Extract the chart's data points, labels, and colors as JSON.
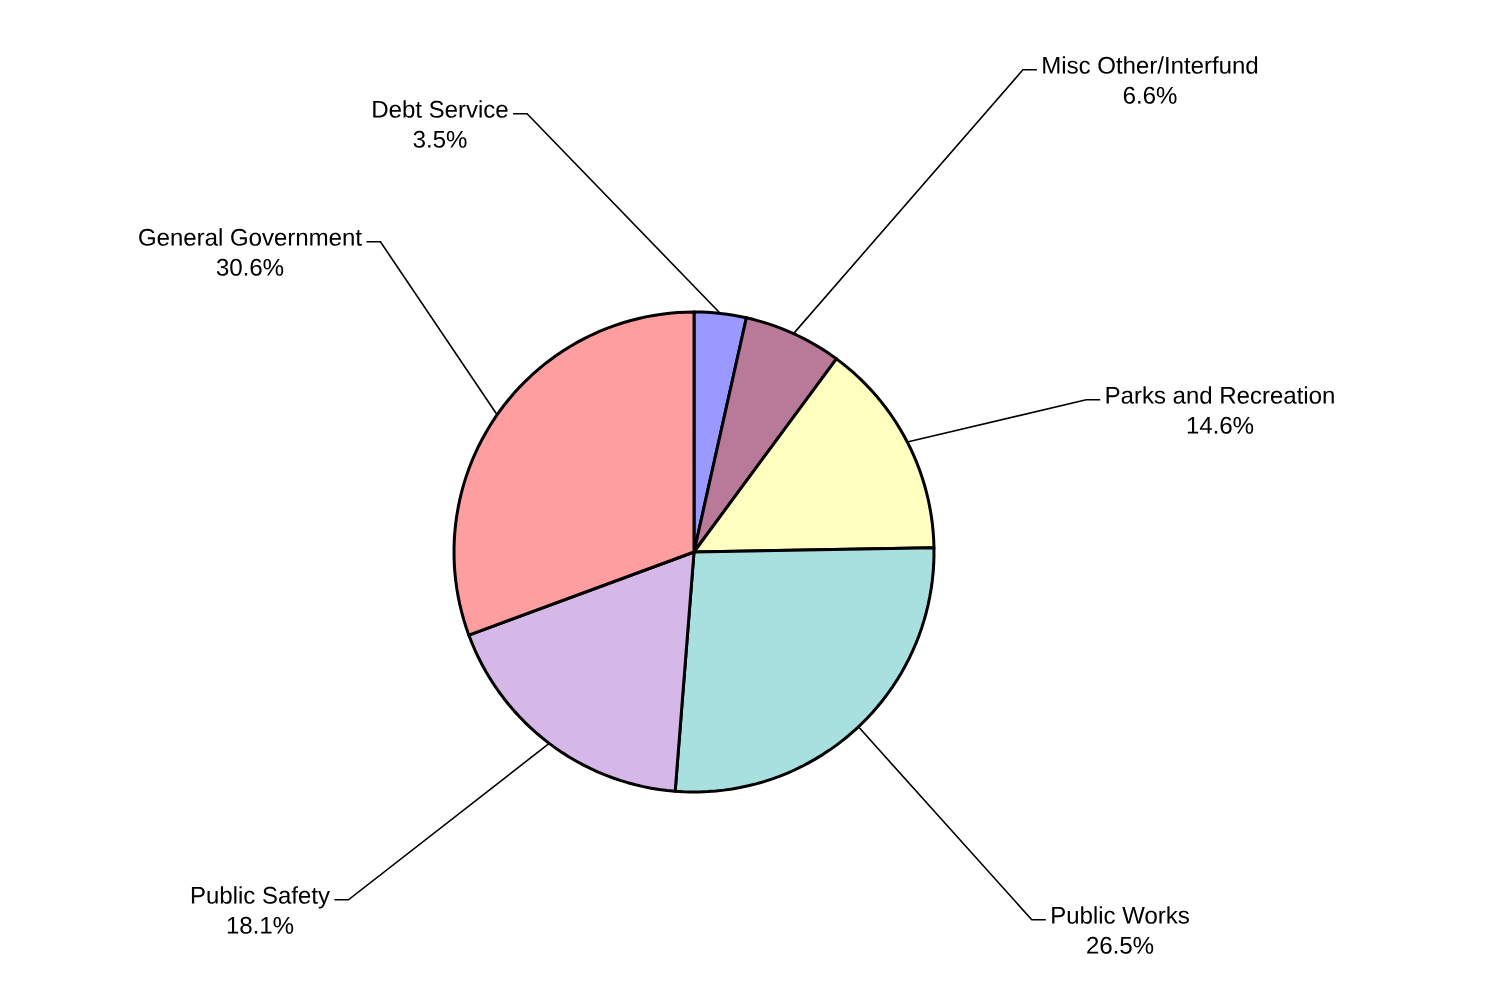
{
  "chart_data": {
    "type": "pie",
    "categories": [
      "Debt Service",
      "Misc Other/Interfund",
      "Parks and Recreation",
      "Public Works",
      "Public Safety",
      "General Government"
    ],
    "values": [
      3.5,
      6.6,
      14.6,
      26.5,
      18.1,
      30.6
    ],
    "value_labels": [
      "3.5%",
      "6.6%",
      "14.6%",
      "26.5%",
      "18.1%",
      "30.6%"
    ],
    "colors": [
      "#9999ff",
      "#b97a9a",
      "#ffffc0",
      "#a8e0e0",
      "#d6b8e8",
      "#ff9ea0"
    ]
  }
}
